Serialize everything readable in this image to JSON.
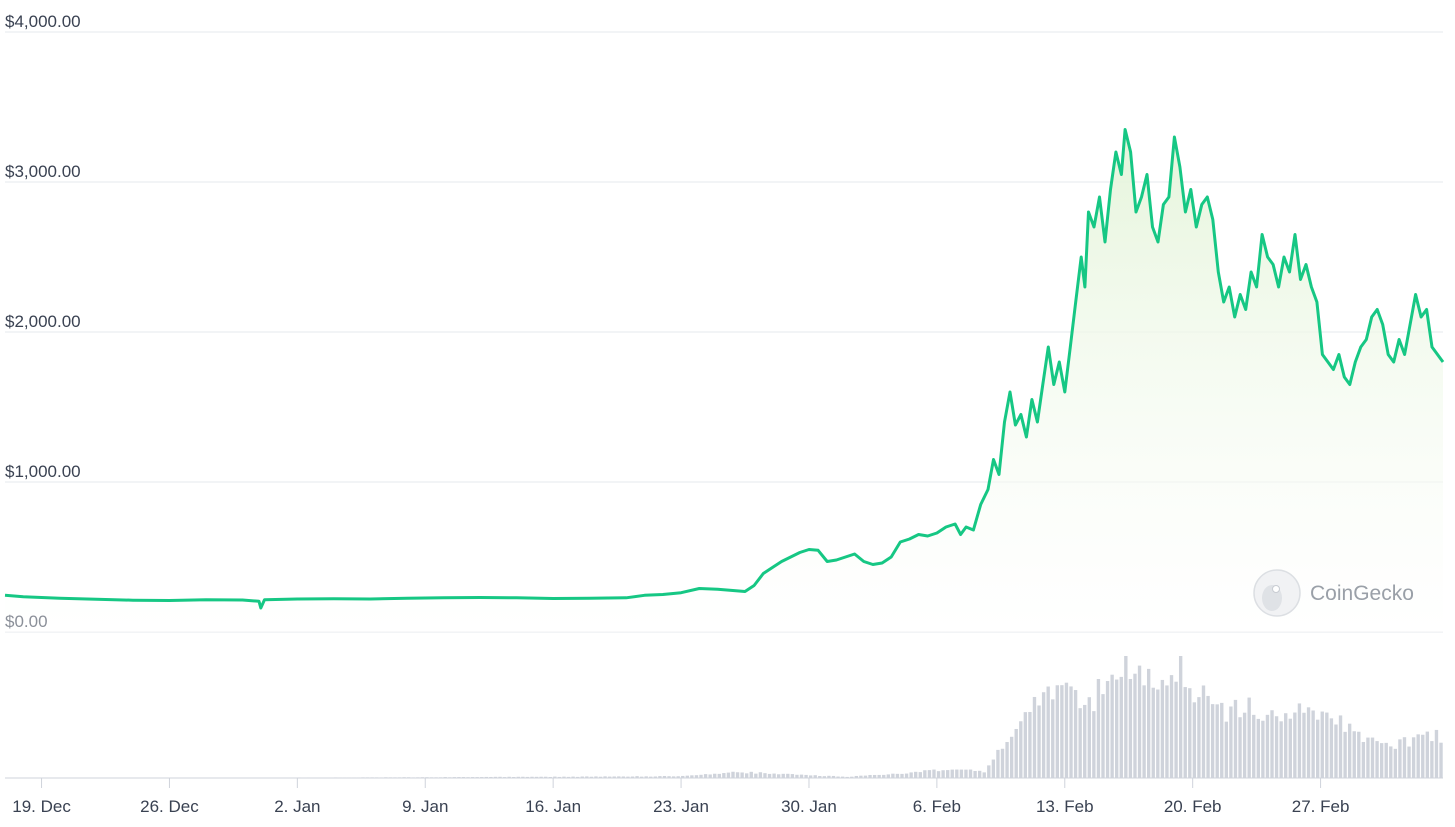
{
  "chart_data": {
    "type": "area",
    "xlabel": "",
    "ylabel": "",
    "ylim": [
      0,
      4000
    ],
    "y_ticks": [
      "$0.00",
      "$1,000.00",
      "$2,000.00",
      "$3,000.00",
      "$4,000.00"
    ],
    "y_tick_values": [
      0,
      1000,
      2000,
      3000,
      4000
    ],
    "x_ticks": [
      "19. Dec",
      "26. Dec",
      "2. Jan",
      "9. Jan",
      "16. Jan",
      "23. Jan",
      "30. Jan",
      "6. Feb",
      "13. Feb",
      "20. Feb",
      "27. Feb"
    ],
    "x_tick_days": [
      2,
      9,
      16,
      23,
      30,
      37,
      44,
      51,
      58,
      65,
      72
    ],
    "x_start": "17. Dec",
    "x_end": "4. Mar",
    "grid": true,
    "series": [
      {
        "values": [
          [
            0,
            245
          ],
          [
            1,
            235
          ],
          [
            3,
            225
          ],
          [
            5,
            218
          ],
          [
            7,
            212
          ],
          [
            9,
            210
          ],
          [
            11,
            215
          ],
          [
            13,
            213
          ],
          [
            13.9,
            205
          ],
          [
            14,
            160
          ],
          [
            14.2,
            215
          ],
          [
            16,
            220
          ],
          [
            18,
            222
          ],
          [
            20,
            220
          ],
          [
            22,
            225
          ],
          [
            24,
            228
          ],
          [
            26,
            230
          ],
          [
            28,
            228
          ],
          [
            30,
            223
          ],
          [
            32,
            225
          ],
          [
            34,
            228
          ],
          [
            35,
            245
          ],
          [
            36,
            250
          ],
          [
            37,
            262
          ],
          [
            38,
            290
          ],
          [
            39,
            285
          ],
          [
            40,
            275
          ],
          [
            40.5,
            270
          ],
          [
            41,
            310
          ],
          [
            41.5,
            390
          ],
          [
            42,
            430
          ],
          [
            42.5,
            470
          ],
          [
            43,
            500
          ],
          [
            43.5,
            530
          ],
          [
            44,
            550
          ],
          [
            44.5,
            545
          ],
          [
            45,
            470
          ],
          [
            45.5,
            480
          ],
          [
            46,
            500
          ],
          [
            46.5,
            520
          ],
          [
            47,
            470
          ],
          [
            47.5,
            450
          ],
          [
            48,
            460
          ],
          [
            48.5,
            500
          ],
          [
            49,
            600
          ],
          [
            49.5,
            620
          ],
          [
            50,
            650
          ],
          [
            50.5,
            640
          ],
          [
            51,
            660
          ],
          [
            51.5,
            700
          ],
          [
            52,
            720
          ],
          [
            52.3,
            650
          ],
          [
            52.6,
            700
          ],
          [
            53,
            680
          ],
          [
            53.4,
            850
          ],
          [
            53.8,
            950
          ],
          [
            54.1,
            1150
          ],
          [
            54.4,
            1050
          ],
          [
            54.7,
            1400
          ],
          [
            55,
            1600
          ],
          [
            55.3,
            1380
          ],
          [
            55.6,
            1450
          ],
          [
            55.9,
            1300
          ],
          [
            56.2,
            1550
          ],
          [
            56.5,
            1400
          ],
          [
            56.8,
            1650
          ],
          [
            57.1,
            1900
          ],
          [
            57.4,
            1650
          ],
          [
            57.7,
            1800
          ],
          [
            58,
            1600
          ],
          [
            58.3,
            1900
          ],
          [
            58.6,
            2200
          ],
          [
            58.9,
            2500
          ],
          [
            59.1,
            2300
          ],
          [
            59.3,
            2800
          ],
          [
            59.6,
            2700
          ],
          [
            59.9,
            2900
          ],
          [
            60.2,
            2600
          ],
          [
            60.5,
            2950
          ],
          [
            60.8,
            3200
          ],
          [
            61.1,
            3050
          ],
          [
            61.3,
            3350
          ],
          [
            61.6,
            3200
          ],
          [
            61.9,
            2800
          ],
          [
            62.2,
            2900
          ],
          [
            62.5,
            3050
          ],
          [
            62.8,
            2700
          ],
          [
            63.1,
            2600
          ],
          [
            63.4,
            2850
          ],
          [
            63.7,
            2900
          ],
          [
            64,
            3300
          ],
          [
            64.3,
            3100
          ],
          [
            64.6,
            2800
          ],
          [
            64.9,
            2950
          ],
          [
            65.2,
            2700
          ],
          [
            65.5,
            2850
          ],
          [
            65.8,
            2900
          ],
          [
            66.1,
            2750
          ],
          [
            66.4,
            2400
          ],
          [
            66.7,
            2200
          ],
          [
            67,
            2300
          ],
          [
            67.3,
            2100
          ],
          [
            67.6,
            2250
          ],
          [
            67.9,
            2150
          ],
          [
            68.2,
            2400
          ],
          [
            68.5,
            2300
          ],
          [
            68.8,
            2650
          ],
          [
            69.1,
            2500
          ],
          [
            69.4,
            2450
          ],
          [
            69.7,
            2300
          ],
          [
            70,
            2500
          ],
          [
            70.3,
            2400
          ],
          [
            70.6,
            2650
          ],
          [
            70.9,
            2350
          ],
          [
            71.2,
            2450
          ],
          [
            71.5,
            2300
          ],
          [
            71.8,
            2200
          ],
          [
            72.1,
            1850
          ],
          [
            72.4,
            1800
          ],
          [
            72.7,
            1750
          ],
          [
            73,
            1850
          ],
          [
            73.3,
            1700
          ],
          [
            73.6,
            1650
          ],
          [
            73.9,
            1800
          ],
          [
            74.2,
            1900
          ],
          [
            74.5,
            1950
          ],
          [
            74.8,
            2100
          ],
          [
            75.1,
            2150
          ],
          [
            75.4,
            2050
          ],
          [
            75.7,
            1850
          ],
          [
            76,
            1800
          ],
          [
            76.3,
            1950
          ],
          [
            76.6,
            1850
          ],
          [
            76.9,
            2050
          ],
          [
            77.2,
            2250
          ],
          [
            77.5,
            2100
          ],
          [
            77.8,
            2150
          ],
          [
            78.1,
            1900
          ],
          [
            78.4,
            1850
          ],
          [
            78.7,
            1800
          ]
        ]
      }
    ],
    "volume": [
      [
        0,
        0
      ],
      [
        20,
        0.5
      ],
      [
        30,
        1
      ],
      [
        37,
        1.5
      ],
      [
        40,
        5
      ],
      [
        43,
        3
      ],
      [
        46,
        1
      ],
      [
        49,
        4
      ],
      [
        52,
        8
      ],
      [
        53.5,
        5
      ],
      [
        54,
        15
      ],
      [
        55,
        40
      ],
      [
        56,
        55
      ],
      [
        57,
        70
      ],
      [
        58,
        75
      ],
      [
        59,
        55
      ],
      [
        60,
        80
      ],
      [
        61,
        100
      ],
      [
        62,
        85
      ],
      [
        63,
        90
      ],
      [
        64,
        95
      ],
      [
        65,
        75
      ],
      [
        66,
        60
      ],
      [
        67,
        55
      ],
      [
        68,
        65
      ],
      [
        69,
        50
      ],
      [
        70,
        52
      ],
      [
        71,
        55
      ],
      [
        72,
        50
      ],
      [
        73,
        45
      ],
      [
        74,
        35
      ],
      [
        75,
        30
      ],
      [
        76,
        28
      ],
      [
        77,
        32
      ],
      [
        78,
        35
      ],
      [
        78.7,
        33
      ]
    ]
  },
  "watermark": {
    "text": "CoinGecko"
  },
  "colors": {
    "line": "#16c784",
    "fill_top": "#e4f4d9",
    "fill_bottom": "#ffffff",
    "grid": "#e6e8ec",
    "volume": "#cfd3db",
    "axis_text": "#3a4252"
  }
}
